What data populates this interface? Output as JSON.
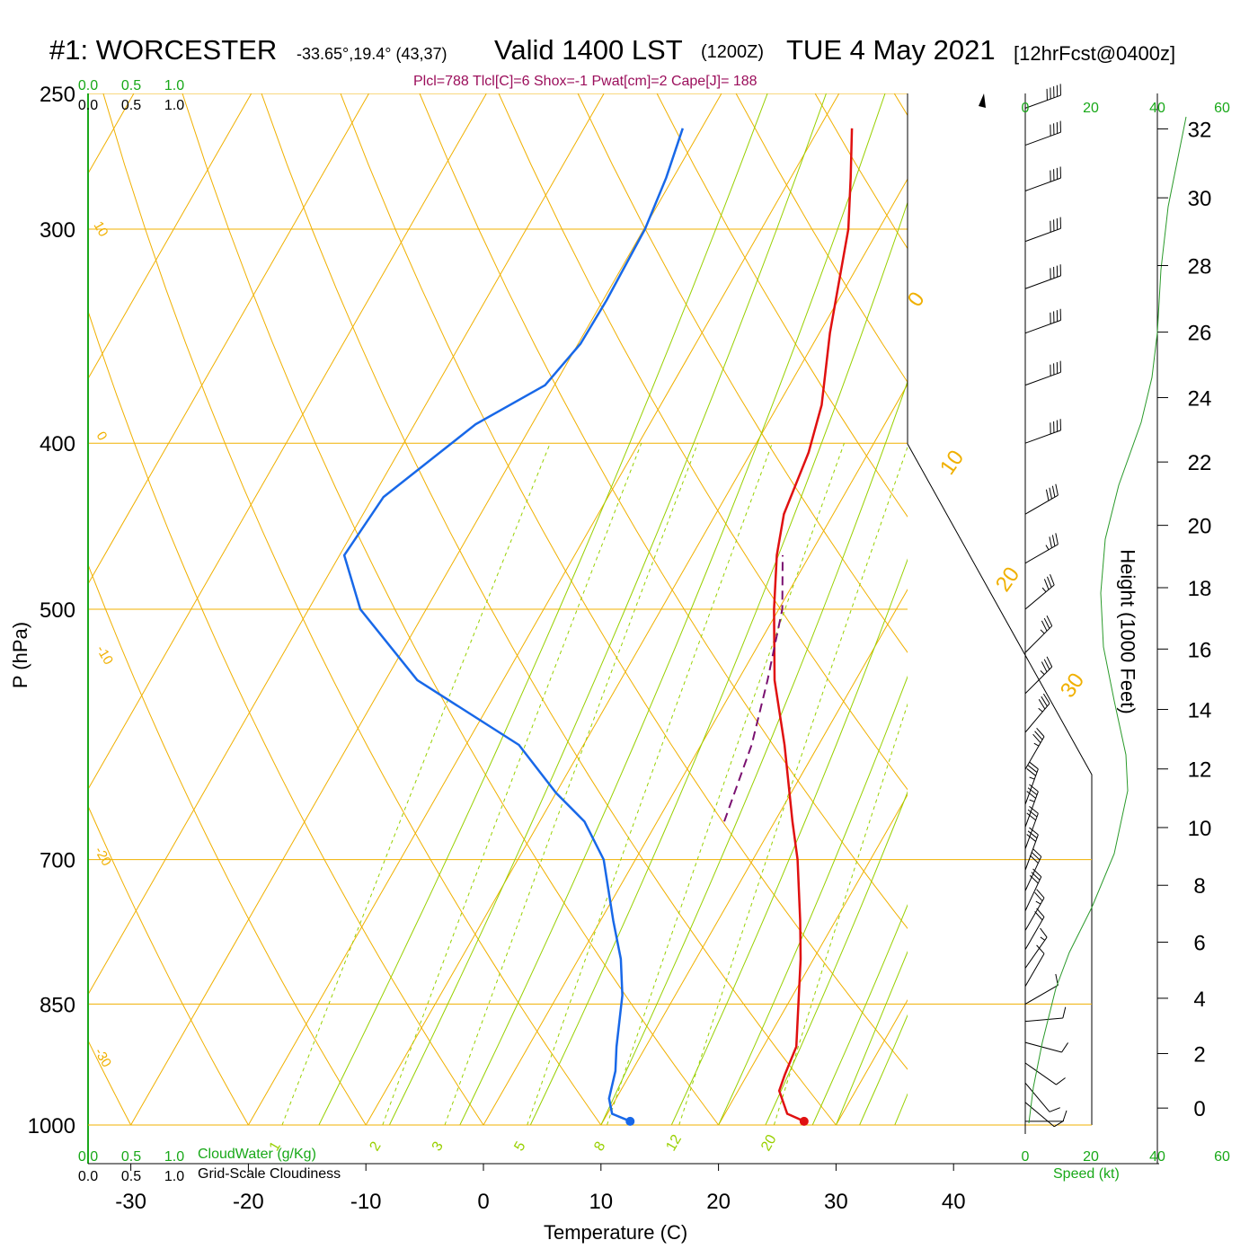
{
  "title": {
    "station": "#1: WORCESTER",
    "coords": "-33.65°,19.4° (43,37)",
    "valid": "Valid 1400 LST",
    "zulu": "(1200Z)",
    "date": "TUE 4 May 2021",
    "forecast": "[12hrFcst@0400z]"
  },
  "params_line": "Plcl=788 Tlcl[C]=6 Shox=-1 Pwat[cm]=2 Cape[J]= 188",
  "axis_labels": {
    "y": "P (hPa)",
    "x": "Temperature (C)",
    "height": "Height (1000 Feet)",
    "cloudwater": "CloudWater (g/Kg)",
    "cloudiness": "Grid-Scale Cloudiness",
    "speed": "Speed (kt)"
  },
  "colors": {
    "isotherm": "#f0b000",
    "moist_adiabat": "#98d000",
    "mixing_ratio": "#98d000",
    "temperature": "#e01010",
    "dewpoint": "#1868e8",
    "parcel": "#7a1070",
    "green_text": "#18a818",
    "params_text": "#9b0e5b"
  },
  "chart_data": {
    "type": "line",
    "diagram": "skew-T log-P",
    "pressure_ticks": [
      "250",
      "300",
      "400",
      "500",
      "700",
      "850",
      "1000"
    ],
    "pressure_levels": [
      250,
      300,
      400,
      500,
      700,
      850,
      1000
    ],
    "temperature_ticks": [
      "-30",
      "-20",
      "-10",
      "0",
      "10",
      "20",
      "30",
      "40"
    ],
    "temperature_values": [
      -30,
      -20,
      -10,
      0,
      10,
      20,
      30,
      40
    ],
    "height_ticks": [
      "0",
      "2",
      "4",
      "6",
      "8",
      "10",
      "12",
      "14",
      "16",
      "18",
      "20",
      "22",
      "24",
      "26",
      "28",
      "30",
      "32"
    ],
    "height_values": [
      0,
      2,
      4,
      6,
      8,
      10,
      12,
      14,
      16,
      18,
      20,
      22,
      24,
      26,
      28,
      30,
      32
    ],
    "wind_speed_ticks_top": [
      "0",
      "20",
      "40",
      "60"
    ],
    "wind_speed_ticks_bottom": [
      "0",
      "20",
      "40",
      "60"
    ],
    "cloudwater_ticks_top": [
      "0.0",
      "0.5",
      "1.0"
    ],
    "cloudiness_ticks_top": [
      "0.0",
      "0.5",
      "1.0"
    ],
    "cloudwater_ticks_bottom": [
      "0.0",
      "0.5",
      "1.0"
    ],
    "cloudiness_ticks_bottom": [
      "0.0",
      "0.5",
      "1.0"
    ],
    "isotherm_labels": [
      {
        "text": "10",
        "T": 10,
        "p": 298
      },
      {
        "text": "0",
        "T": 0,
        "p": 398
      },
      {
        "text": "-10",
        "T": -10,
        "p": 512
      },
      {
        "text": "-20",
        "T": -20,
        "p": 683
      },
      {
        "text": "-30",
        "T": -30,
        "p": 875
      },
      {
        "text": "0",
        "T": 0,
        "p": 339
      },
      {
        "text": "10",
        "T": 10,
        "p": 418
      },
      {
        "text": "20",
        "T": 20,
        "p": 498
      },
      {
        "text": "30",
        "T": 30,
        "p": 595
      }
    ],
    "mixing_ratio_labels": [
      "1",
      "2",
      "3",
      "5",
      "8",
      "12",
      "20"
    ],
    "mixing_ratio_values": [
      1,
      2,
      3,
      5,
      8,
      12,
      20
    ],
    "series": [
      {
        "name": "Temperature",
        "points": [
          [
            27.1,
            995
          ],
          [
            25.3,
            985
          ],
          [
            23.5,
            955
          ],
          [
            23.2,
            935
          ],
          [
            22.8,
            900
          ],
          [
            18.9,
            800
          ],
          [
            17.0,
            760
          ],
          [
            13.8,
            700
          ],
          [
            11.5,
            665
          ],
          [
            7.1,
            600
          ],
          [
            3.1,
            550
          ],
          [
            -0.4,
            500
          ],
          [
            -2.8,
            465
          ],
          [
            -4.2,
            440
          ],
          [
            -5.1,
            405
          ],
          [
            -6.3,
            380
          ],
          [
            -9.1,
            345
          ],
          [
            -12.6,
            300
          ],
          [
            -14.9,
            280
          ],
          [
            -17.2,
            262
          ]
        ]
      },
      {
        "name": "Dewpoint",
        "points": [
          [
            12.3,
            995
          ],
          [
            10.4,
            985
          ],
          [
            9.4,
            965
          ],
          [
            8.6,
            930
          ],
          [
            7.5,
            900
          ],
          [
            5.5,
            840
          ],
          [
            3.6,
            800
          ],
          [
            1.1,
            760
          ],
          [
            -2.7,
            700
          ],
          [
            -6.2,
            665
          ],
          [
            -10.0,
            640
          ],
          [
            -15.5,
            600
          ],
          [
            -27.3,
            550
          ],
          [
            -35.6,
            500
          ],
          [
            -39.6,
            465
          ],
          [
            -39.1,
            430
          ],
          [
            -34.8,
            390
          ],
          [
            -30.8,
            370
          ],
          [
            -29.8,
            350
          ],
          [
            -29.7,
            330
          ],
          [
            -29.9,
            300
          ],
          [
            -30.6,
            280
          ],
          [
            -31.6,
            262
          ]
        ]
      },
      {
        "name": "Parcel",
        "points": [
          [
            5.7,
            665
          ],
          [
            4.3,
            600
          ],
          [
            2.5,
            550
          ],
          [
            0.3,
            500
          ],
          [
            -2.3,
            465
          ]
        ]
      }
    ],
    "wind_barbs": [
      {
        "p": 995,
        "dir": 270,
        "spd": 10
      },
      {
        "p": 970,
        "dir": 230,
        "spd": 10
      },
      {
        "p": 945,
        "dir": 220,
        "spd": 10
      },
      {
        "p": 920,
        "dir": 235,
        "spd": 10
      },
      {
        "p": 895,
        "dir": 255,
        "spd": 10
      },
      {
        "p": 870,
        "dir": 275,
        "spd": 10
      },
      {
        "p": 850,
        "dir": 300,
        "spd": 10
      },
      {
        "p": 830,
        "dir": 330,
        "spd": 10
      },
      {
        "p": 810,
        "dir": 325,
        "spd": 15
      },
      {
        "p": 790,
        "dir": 330,
        "spd": 20
      },
      {
        "p": 770,
        "dir": 330,
        "spd": 25
      },
      {
        "p": 750,
        "dir": 335,
        "spd": 30
      },
      {
        "p": 730,
        "dir": 335,
        "spd": 30
      },
      {
        "p": 710,
        "dir": 340,
        "spd": 30
      },
      {
        "p": 690,
        "dir": 340,
        "spd": 30
      },
      {
        "p": 670,
        "dir": 340,
        "spd": 35
      },
      {
        "p": 650,
        "dir": 340,
        "spd": 35
      },
      {
        "p": 620,
        "dir": 330,
        "spd": 35
      },
      {
        "p": 590,
        "dir": 320,
        "spd": 35
      },
      {
        "p": 560,
        "dir": 315,
        "spd": 35
      },
      {
        "p": 530,
        "dir": 315,
        "spd": 35
      },
      {
        "p": 500,
        "dir": 310,
        "spd": 35
      },
      {
        "p": 470,
        "dir": 300,
        "spd": 35
      },
      {
        "p": 440,
        "dir": 300,
        "spd": 40
      },
      {
        "p": 400,
        "dir": 290,
        "spd": 40
      },
      {
        "p": 370,
        "dir": 290,
        "spd": 40
      },
      {
        "p": 345,
        "dir": 290,
        "spd": 40
      },
      {
        "p": 325,
        "dir": 290,
        "spd": 40
      },
      {
        "p": 305,
        "dir": 290,
        "spd": 40
      },
      {
        "p": 285,
        "dir": 290,
        "spd": 40
      },
      {
        "p": 268,
        "dir": 290,
        "spd": 40
      },
      {
        "p": 255,
        "dir": 290,
        "spd": 50
      }
    ]
  }
}
